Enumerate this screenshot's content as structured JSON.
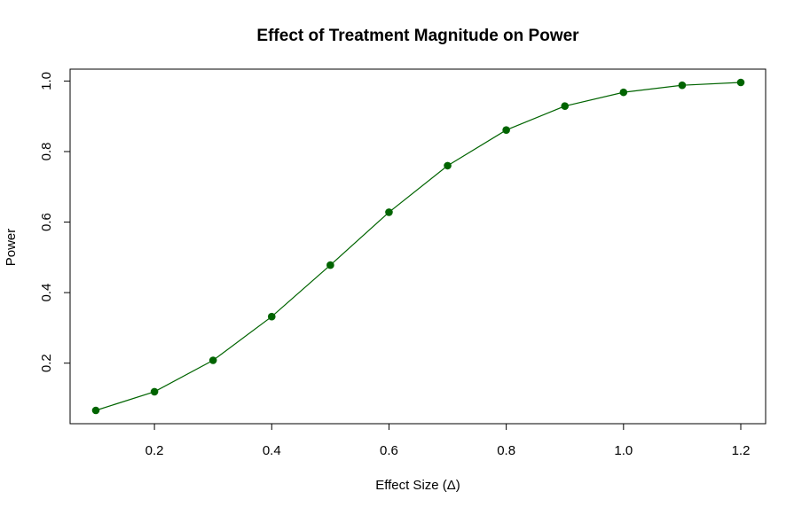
{
  "chart_data": {
    "type": "line",
    "title": "Effect of Treatment Magnitude on Power",
    "xlabel": "Effect Size (Δ)",
    "ylabel": "Power",
    "x": [
      0.1,
      0.2,
      0.3,
      0.4,
      0.5,
      0.6,
      0.7,
      0.8,
      0.9,
      1.0,
      1.1,
      1.2
    ],
    "series": [
      {
        "values": [
          0.066,
          0.119,
          0.208,
          0.332,
          0.478,
          0.628,
          0.76,
          0.861,
          0.929,
          0.968,
          0.988,
          0.996
        ],
        "color": "#006400"
      }
    ],
    "xlim": [
      0.1,
      1.2
    ],
    "ylim": [
      0.066,
      0.996
    ],
    "xticks": [
      0.2,
      0.4,
      0.6,
      0.8,
      1.0,
      1.2
    ],
    "xtick_labels": [
      "0.2",
      "0.4",
      "0.6",
      "0.8",
      "1.0",
      "1.2"
    ],
    "yticks": [
      0.2,
      0.4,
      0.6,
      0.8,
      1.0
    ],
    "ytick_labels": [
      "0.2",
      "0.4",
      "0.6",
      "0.8",
      "1.0"
    ],
    "grid": false,
    "legend": "none"
  }
}
